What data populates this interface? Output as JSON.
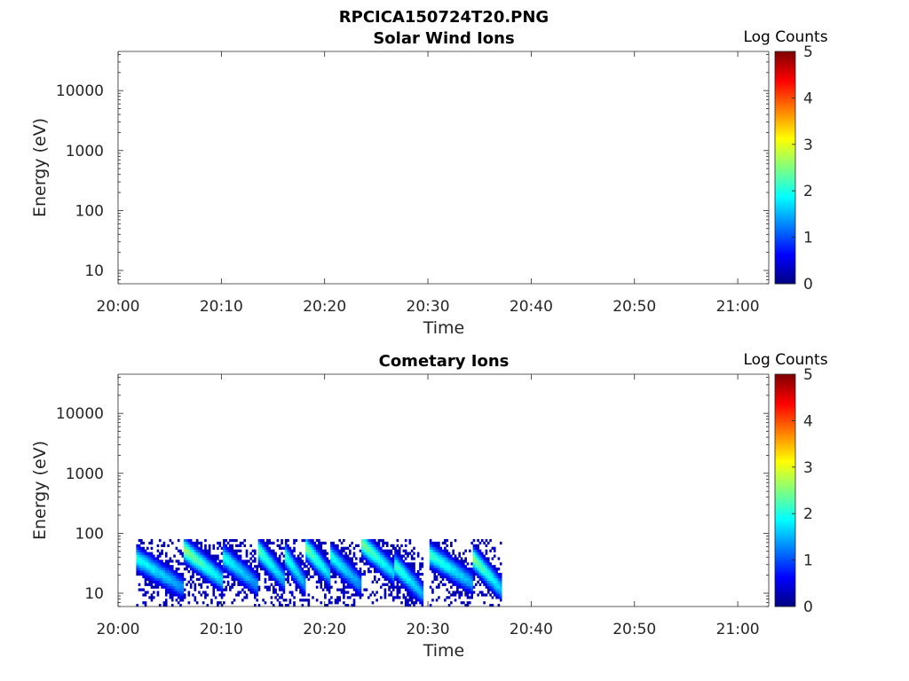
{
  "figure_title": "RPCICA150724T20.PNG",
  "colors": {
    "axis": "#262626",
    "background": "#ffffff"
  },
  "chart_data": [
    {
      "type": "heatmap",
      "title": "Solar Wind Ions",
      "xlabel": "Time",
      "ylabel": "Energy (eV)",
      "x_scale": "time",
      "y_scale": "log",
      "xlim": [
        "20:00",
        "21:03"
      ],
      "ylim": [
        6,
        45000
      ],
      "x_ticks": [
        "20:00",
        "20:10",
        "20:20",
        "20:30",
        "20:40",
        "20:50",
        "21:00"
      ],
      "y_ticks": [
        {
          "value": 10,
          "label": "10"
        },
        {
          "value": 100,
          "label": "100"
        },
        {
          "value": 1000,
          "label": "1000"
        },
        {
          "value": 10000,
          "label": "10000"
        }
      ],
      "colorbar": {
        "label": "Log Counts",
        "range": [
          0,
          5
        ],
        "ticks": [
          "0",
          "1",
          "2",
          "3",
          "4",
          "5"
        ],
        "colormap": "jet"
      },
      "segments": []
    },
    {
      "type": "heatmap",
      "title": "Cometary Ions",
      "xlabel": "Time",
      "ylabel": "Energy (eV)",
      "x_scale": "time",
      "y_scale": "log",
      "xlim": [
        "20:00",
        "21:03"
      ],
      "ylim": [
        6,
        45000
      ],
      "x_ticks": [
        "20:00",
        "20:10",
        "20:20",
        "20:30",
        "20:40",
        "20:50",
        "21:00"
      ],
      "y_ticks": [
        {
          "value": 10,
          "label": "10"
        },
        {
          "value": 100,
          "label": "100"
        },
        {
          "value": 1000,
          "label": "1000"
        },
        {
          "value": 10000,
          "label": "10000"
        }
      ],
      "colorbar": {
        "label": "Log Counts",
        "range": [
          0,
          5
        ],
        "ticks": [
          "0",
          "1",
          "2",
          "3",
          "4",
          "5"
        ],
        "colormap": "jet"
      },
      "data_time_range": [
        "20:01:45",
        "20:37:00"
      ],
      "data_energy_range": [
        6,
        80
      ],
      "segments": [
        {
          "start": "20:01:45",
          "end": "20:06:20",
          "peak_energy": 25,
          "peak_log_counts": 2.0
        },
        {
          "start": "20:06:20",
          "end": "20:10:00",
          "peak_energy": 35,
          "peak_log_counts": 2.6
        },
        {
          "start": "20:10:00",
          "end": "20:13:30",
          "peak_energy": 28,
          "peak_log_counts": 2.0
        },
        {
          "start": "20:13:30",
          "end": "20:16:00",
          "peak_energy": 35,
          "peak_log_counts": 2.3
        },
        {
          "start": "20:16:00",
          "end": "20:18:00",
          "peak_energy": 30,
          "peak_log_counts": 2.2
        },
        {
          "start": "20:18:00",
          "end": "20:20:30",
          "peak_energy": 40,
          "peak_log_counts": 2.5
        },
        {
          "start": "20:20:30",
          "end": "20:23:30",
          "peak_energy": 28,
          "peak_log_counts": 2.0
        },
        {
          "start": "20:23:30",
          "end": "20:26:40",
          "peak_energy": 45,
          "peak_log_counts": 2.5
        },
        {
          "start": "20:26:40",
          "end": "20:29:30",
          "peak_energy": 20,
          "peak_log_counts": 2.2
        },
        {
          "start": "20:30:00",
          "end": "20:34:20",
          "peak_energy": 30,
          "peak_log_counts": 2.2
        },
        {
          "start": "20:34:20",
          "end": "20:37:00",
          "peak_energy": 25,
          "peak_log_counts": 2.5
        }
      ]
    }
  ]
}
